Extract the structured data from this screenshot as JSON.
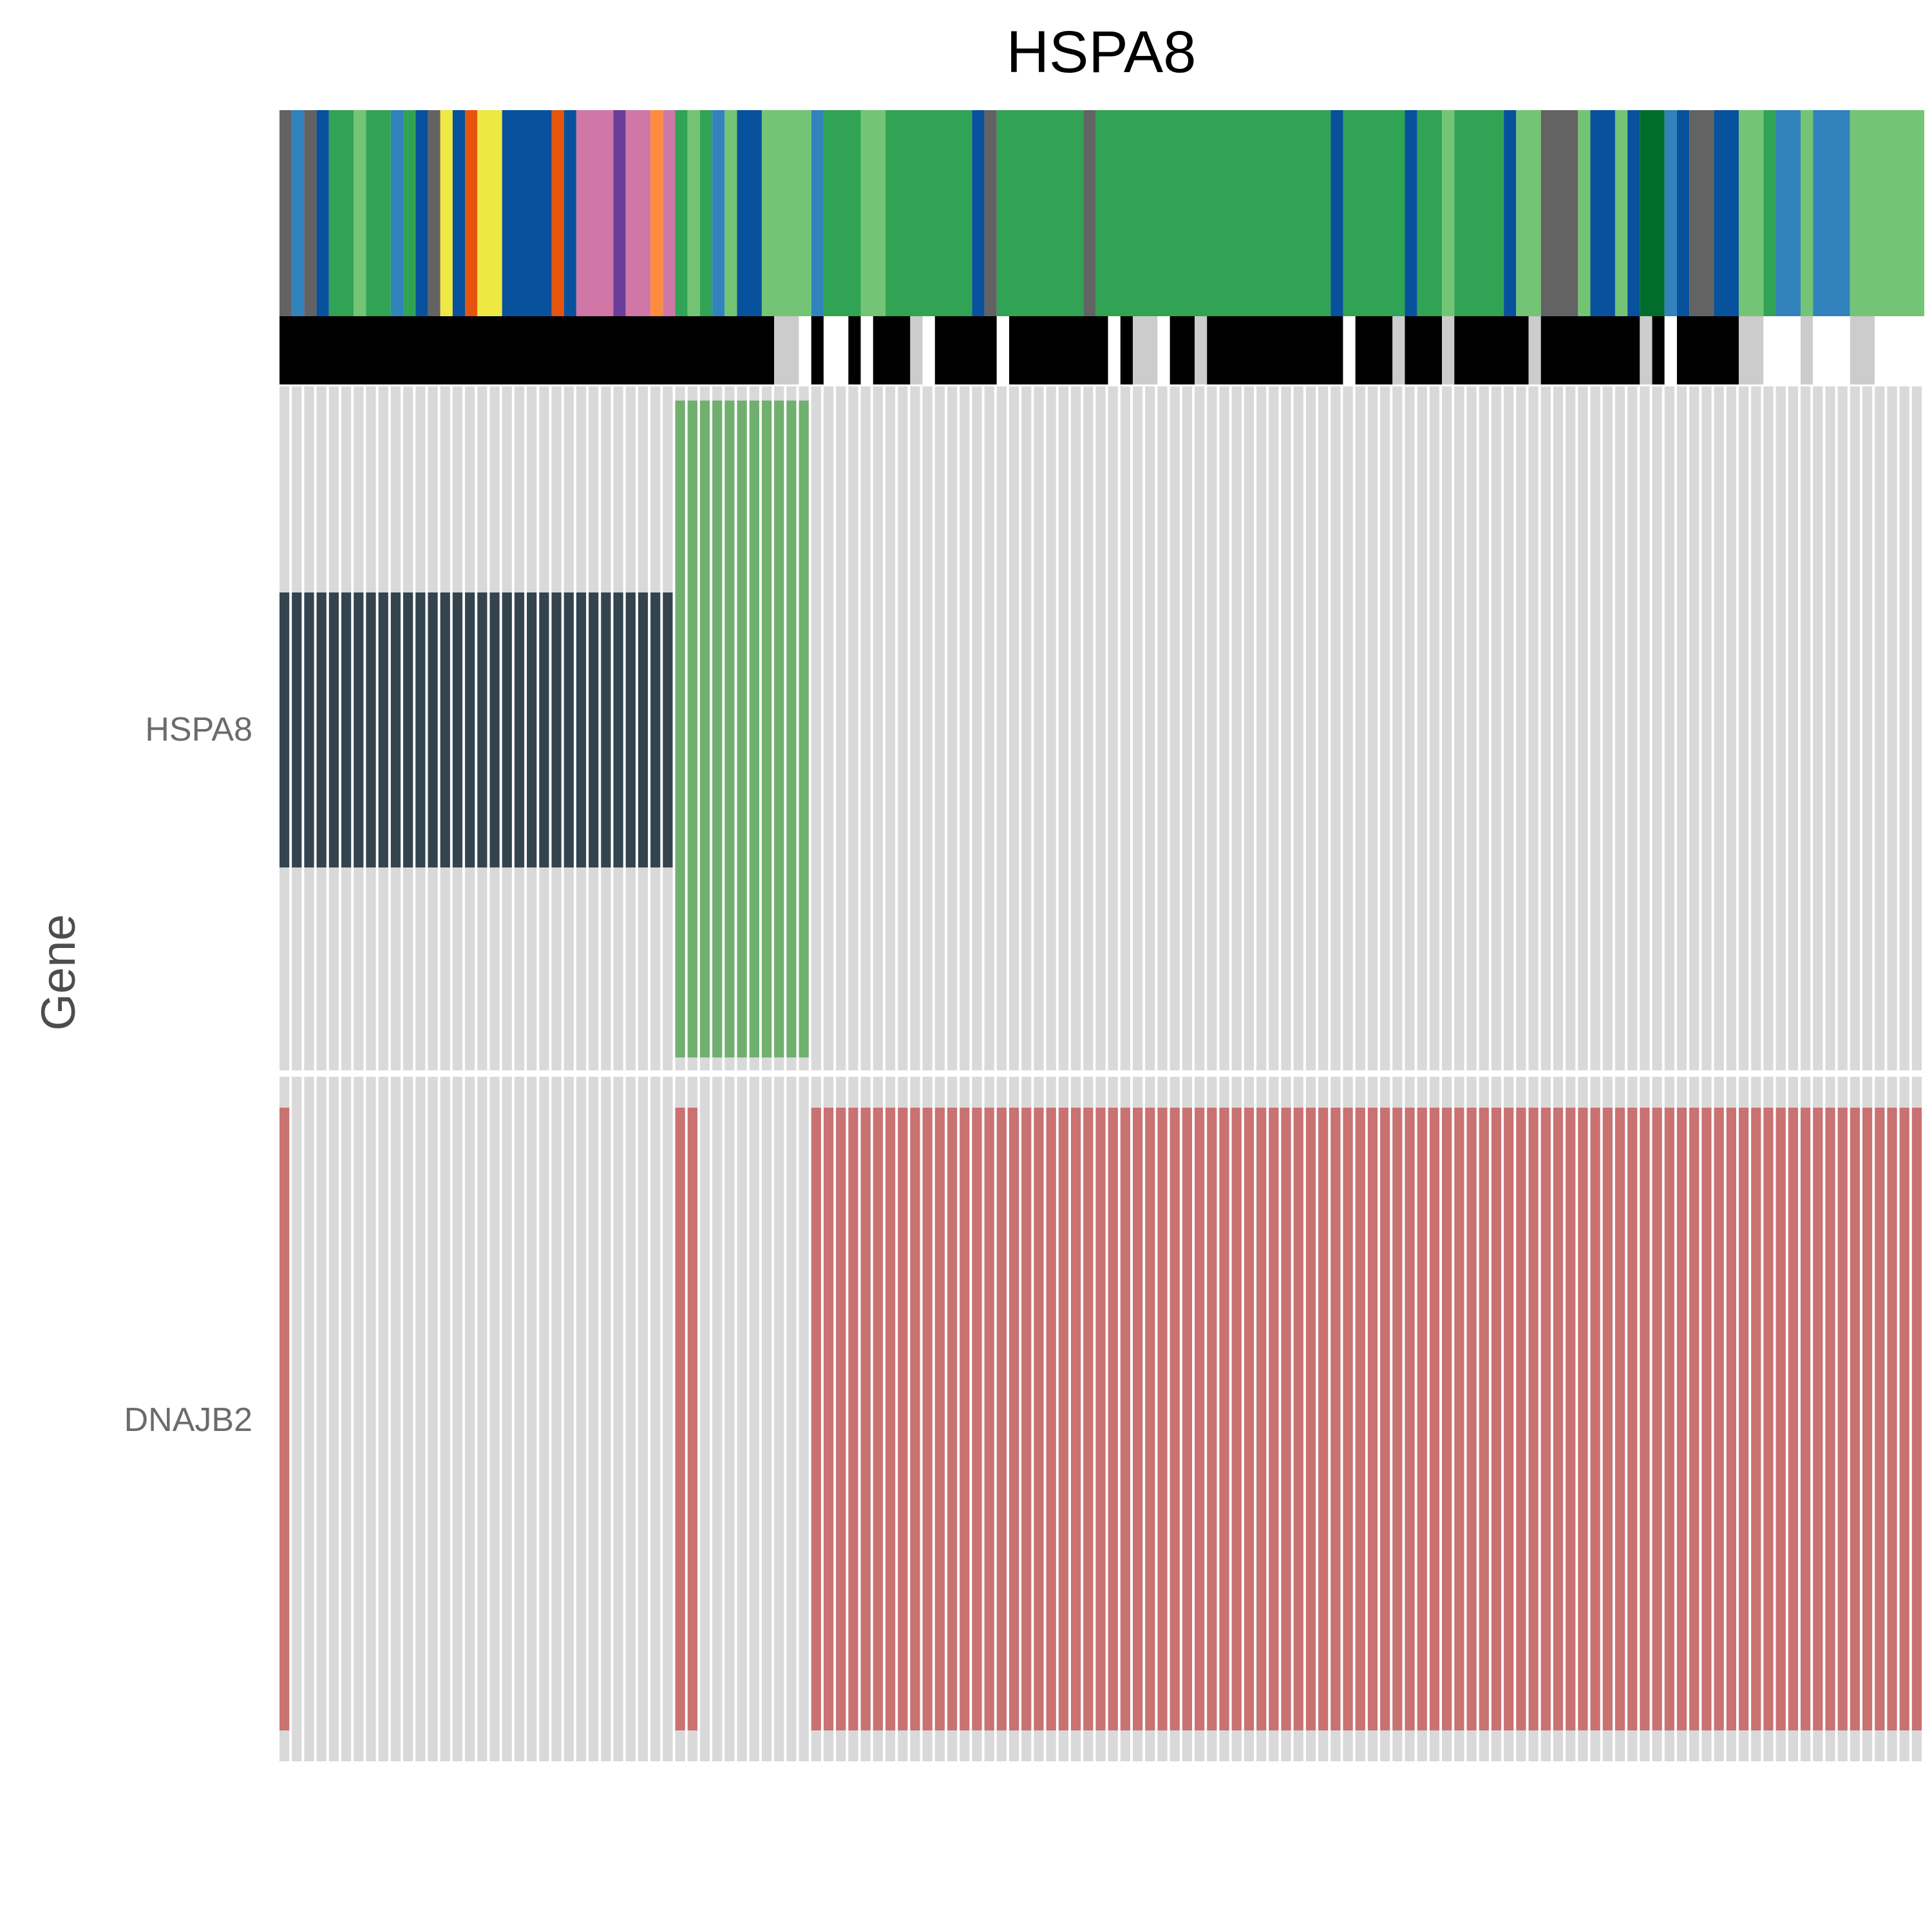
{
  "chart_data": {
    "type": "heatmap",
    "title": "HSPA8",
    "ylabel": "Gene",
    "rows": [
      "HSPA8",
      "DNAJB2"
    ],
    "n_columns": 133,
    "cell_colors": {
      "background": "#d9d9d9",
      "HSPA8_dark": "#34444f",
      "HSPA8_green": "#70b06e",
      "DNAJB2_red": "#c97271"
    },
    "HSPA8_row": [
      {
        "from": 1,
        "to": 32,
        "value": "dark"
      },
      {
        "from": 33,
        "to": 43,
        "value": "green"
      }
    ],
    "DNAJB2_row": [
      {
        "from": 1,
        "to": 1,
        "value": "red"
      },
      {
        "from": 33,
        "to": 34,
        "value": "red"
      },
      {
        "from": 44,
        "to": 133,
        "value": "red"
      }
    ],
    "annotation_track_1": [
      {
        "from": 1,
        "to": 1,
        "color": "#636363"
      },
      {
        "from": 2,
        "to": 2,
        "color": "#3182bd"
      },
      {
        "from": 3,
        "to": 3,
        "color": "#636363"
      },
      {
        "from": 4,
        "to": 4,
        "color": "#08519c"
      },
      {
        "from": 5,
        "to": 6,
        "color": "#31a354"
      },
      {
        "from": 7,
        "to": 7,
        "color": "#74c476"
      },
      {
        "from": 8,
        "to": 9,
        "color": "#31a354"
      },
      {
        "from": 10,
        "to": 10,
        "color": "#3182bd"
      },
      {
        "from": 11,
        "to": 11,
        "color": "#31a354"
      },
      {
        "from": 12,
        "to": 12,
        "color": "#08519c"
      },
      {
        "from": 13,
        "to": 13,
        "color": "#636363"
      },
      {
        "from": 14,
        "to": 14,
        "color": "#eee842"
      },
      {
        "from": 15,
        "to": 15,
        "color": "#08519c"
      },
      {
        "from": 16,
        "to": 16,
        "color": "#e6550d"
      },
      {
        "from": 17,
        "to": 18,
        "color": "#eee842"
      },
      {
        "from": 19,
        "to": 22,
        "color": "#08519c"
      },
      {
        "from": 23,
        "to": 23,
        "color": "#e6550d"
      },
      {
        "from": 24,
        "to": 24,
        "color": "#08519c"
      },
      {
        "from": 25,
        "to": 27,
        "color": "#d077a8"
      },
      {
        "from": 28,
        "to": 28,
        "color": "#6a3d9a"
      },
      {
        "from": 29,
        "to": 30,
        "color": "#d077a8"
      },
      {
        "from": 31,
        "to": 31,
        "color": "#fd8d3c"
      },
      {
        "from": 32,
        "to": 32,
        "color": "#d077a8"
      },
      {
        "from": 33,
        "to": 33,
        "color": "#31a354"
      },
      {
        "from": 34,
        "to": 34,
        "color": "#74c476"
      },
      {
        "from": 35,
        "to": 35,
        "color": "#31a354"
      },
      {
        "from": 36,
        "to": 36,
        "color": "#3182bd"
      },
      {
        "from": 37,
        "to": 37,
        "color": "#74c476"
      },
      {
        "from": 38,
        "to": 39,
        "color": "#08519c"
      },
      {
        "from": 40,
        "to": 43,
        "color": "#74c476"
      },
      {
        "from": 44,
        "to": 44,
        "color": "#3182bd"
      },
      {
        "from": 45,
        "to": 47,
        "color": "#31a354"
      },
      {
        "from": 48,
        "to": 49,
        "color": "#74c476"
      },
      {
        "from": 50,
        "to": 56,
        "color": "#31a354"
      },
      {
        "from": 57,
        "to": 57,
        "color": "#08519c"
      },
      {
        "from": 58,
        "to": 58,
        "color": "#636363"
      },
      {
        "from": 59,
        "to": 65,
        "color": "#31a354"
      },
      {
        "from": 66,
        "to": 66,
        "color": "#636363"
      },
      {
        "from": 67,
        "to": 85,
        "color": "#31a354"
      },
      {
        "from": 86,
        "to": 86,
        "color": "#08519c"
      },
      {
        "from": 87,
        "to": 91,
        "color": "#31a354"
      },
      {
        "from": 92,
        "to": 92,
        "color": "#08519c"
      },
      {
        "from": 93,
        "to": 94,
        "color": "#31a354"
      },
      {
        "from": 95,
        "to": 95,
        "color": "#74c476"
      },
      {
        "from": 96,
        "to": 99,
        "color": "#31a354"
      },
      {
        "from": 100,
        "to": 100,
        "color": "#08519c"
      },
      {
        "from": 101,
        "to": 102,
        "color": "#74c476"
      },
      {
        "from": 103,
        "to": 105,
        "color": "#636363"
      },
      {
        "from": 106,
        "to": 106,
        "color": "#74c476"
      },
      {
        "from": 107,
        "to": 108,
        "color": "#08519c"
      },
      {
        "from": 109,
        "to": 109,
        "color": "#74c476"
      },
      {
        "from": 110,
        "to": 110,
        "color": "#08519c"
      },
      {
        "from": 111,
        "to": 112,
        "color": "#006d2c"
      },
      {
        "from": 113,
        "to": 113,
        "color": "#3182bd"
      },
      {
        "from": 114,
        "to": 114,
        "color": "#08519c"
      },
      {
        "from": 115,
        "to": 116,
        "color": "#636363"
      },
      {
        "from": 117,
        "to": 118,
        "color": "#08519c"
      },
      {
        "from": 119,
        "to": 120,
        "color": "#74c476"
      },
      {
        "from": 121,
        "to": 121,
        "color": "#31a354"
      },
      {
        "from": 122,
        "to": 123,
        "color": "#3182bd"
      },
      {
        "from": 124,
        "to": 124,
        "color": "#74c476"
      },
      {
        "from": 125,
        "to": 127,
        "color": "#3182bd"
      },
      {
        "from": 128,
        "to": 133,
        "color": "#74c476"
      }
    ],
    "annotation_track_2": [
      {
        "from": 1,
        "to": 40,
        "color": "#000000"
      },
      {
        "from": 41,
        "to": 42,
        "color": "#cccccc"
      },
      {
        "from": 43,
        "to": 43,
        "color": "#ffffff"
      },
      {
        "from": 44,
        "to": 44,
        "color": "#000000"
      },
      {
        "from": 45,
        "to": 46,
        "color": "#ffffff"
      },
      {
        "from": 47,
        "to": 47,
        "color": "#000000"
      },
      {
        "from": 48,
        "to": 48,
        "color": "#ffffff"
      },
      {
        "from": 49,
        "to": 51,
        "color": "#000000"
      },
      {
        "from": 52,
        "to": 52,
        "color": "#cccccc"
      },
      {
        "from": 53,
        "to": 53,
        "color": "#ffffff"
      },
      {
        "from": 54,
        "to": 58,
        "color": "#000000"
      },
      {
        "from": 59,
        "to": 59,
        "color": "#ffffff"
      },
      {
        "from": 60,
        "to": 67,
        "color": "#000000"
      },
      {
        "from": 68,
        "to": 68,
        "color": "#ffffff"
      },
      {
        "from": 69,
        "to": 69,
        "color": "#000000"
      },
      {
        "from": 70,
        "to": 71,
        "color": "#cccccc"
      },
      {
        "from": 72,
        "to": 72,
        "color": "#ffffff"
      },
      {
        "from": 73,
        "to": 74,
        "color": "#000000"
      },
      {
        "from": 75,
        "to": 75,
        "color": "#cccccc"
      },
      {
        "from": 76,
        "to": 86,
        "color": "#000000"
      },
      {
        "from": 87,
        "to": 87,
        "color": "#ffffff"
      },
      {
        "from": 88,
        "to": 90,
        "color": "#000000"
      },
      {
        "from": 91,
        "to": 91,
        "color": "#cccccc"
      },
      {
        "from": 92,
        "to": 94,
        "color": "#000000"
      },
      {
        "from": 95,
        "to": 95,
        "color": "#cccccc"
      },
      {
        "from": 96,
        "to": 101,
        "color": "#000000"
      },
      {
        "from": 102,
        "to": 102,
        "color": "#cccccc"
      },
      {
        "from": 103,
        "to": 110,
        "color": "#000000"
      },
      {
        "from": 111,
        "to": 111,
        "color": "#cccccc"
      },
      {
        "from": 112,
        "to": 112,
        "color": "#000000"
      },
      {
        "from": 113,
        "to": 113,
        "color": "#ffffff"
      },
      {
        "from": 114,
        "to": 118,
        "color": "#000000"
      },
      {
        "from": 119,
        "to": 120,
        "color": "#cccccc"
      },
      {
        "from": 121,
        "to": 123,
        "color": "#ffffff"
      },
      {
        "from": 124,
        "to": 124,
        "color": "#cccccc"
      },
      {
        "from": 125,
        "to": 127,
        "color": "#ffffff"
      },
      {
        "from": 128,
        "to": 129,
        "color": "#cccccc"
      },
      {
        "from": 130,
        "to": 133,
        "color": "#ffffff"
      }
    ]
  }
}
